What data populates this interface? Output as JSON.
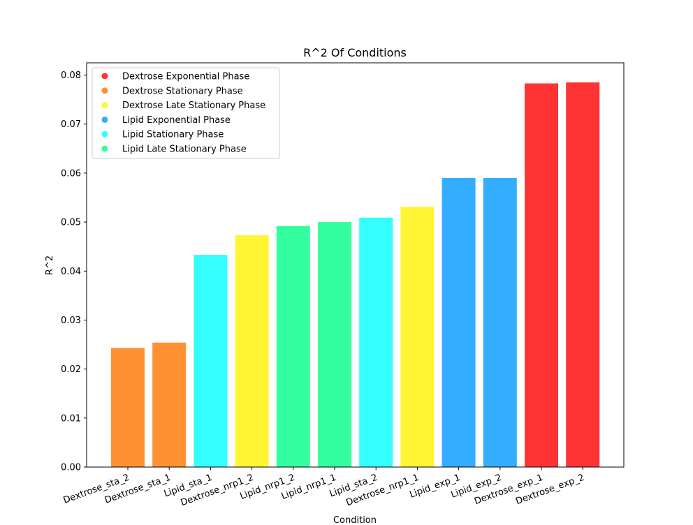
{
  "chart_data": {
    "type": "bar",
    "title": "R^2 Of Conditions",
    "xlabel": "Condition",
    "ylabel": "R^2",
    "ylim": [
      0,
      0.0825
    ],
    "yticks": [
      0.0,
      0.01,
      0.02,
      0.03,
      0.04,
      0.05,
      0.06,
      0.07,
      0.08
    ],
    "ytick_labels": [
      "0.00",
      "0.01",
      "0.02",
      "0.03",
      "0.04",
      "0.05",
      "0.06",
      "0.07",
      "0.08"
    ],
    "grid": false,
    "legend_position": "top-left",
    "categories": [
      "Dextrose_sta_2",
      "Dextrose_sta_1",
      "Lipid_sta_1",
      "Dextrose_nrp1_2",
      "Lipid_nrp1_2",
      "Lipid_nrp1_1",
      "Lipid_sta_2",
      "Dextrose_nrp1_1",
      "Lipid_exp_1",
      "Lipid_exp_2",
      "Dextrose_exp_1",
      "Dextrose_exp_2"
    ],
    "values": [
      0.0243,
      0.0254,
      0.0433,
      0.0473,
      0.0492,
      0.05,
      0.0509,
      0.0531,
      0.059,
      0.059,
      0.0783,
      0.0785
    ],
    "bar_groups": [
      "Dextrose Stationary Phase",
      "Dextrose Stationary Phase",
      "Lipid Stationary Phase",
      "Dextrose Late Stationary Phase",
      "Lipid Late Stationary Phase",
      "Lipid Late Stationary Phase",
      "Lipid Stationary Phase",
      "Dextrose Late Stationary Phase",
      "Lipid Exponential Phase",
      "Lipid Exponential Phase",
      "Dextrose Exponential Phase",
      "Dextrose Exponential Phase"
    ],
    "legend": [
      {
        "label": "Dextrose Exponential Phase",
        "color": "#ff3333"
      },
      {
        "label": "Dextrose Stationary Phase",
        "color": "#ff9133"
      },
      {
        "label": "Dextrose Late Stationary Phase",
        "color": "#fff533"
      },
      {
        "label": "Lipid Exponential Phase",
        "color": "#33adff"
      },
      {
        "label": "Lipid Stationary Phase",
        "color": "#33ffff"
      },
      {
        "label": "Lipid Late Stationary Phase",
        "color": "#33ff9e"
      }
    ]
  }
}
